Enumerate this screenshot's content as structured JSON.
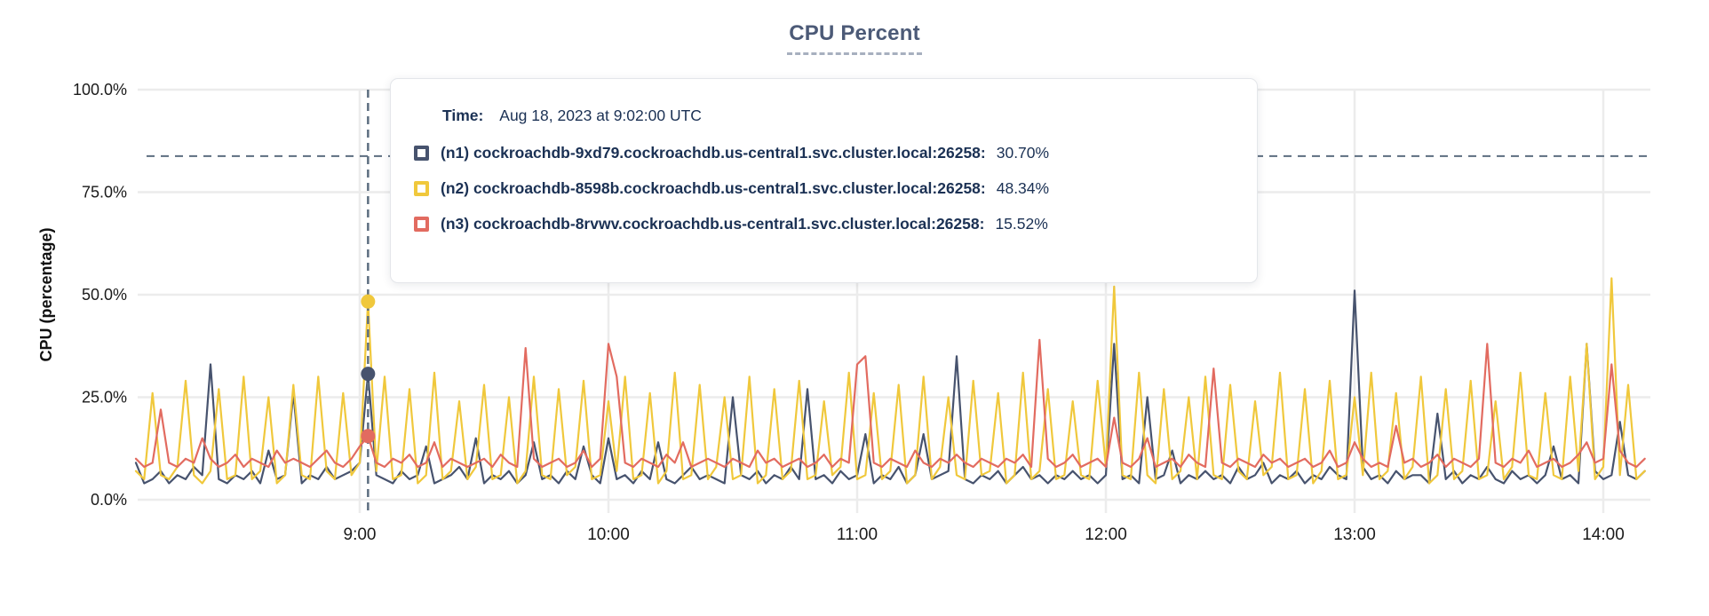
{
  "page": {
    "title": "CPU Percent"
  },
  "tooltip": {
    "time_label": "Time:",
    "time_value": "Aug 18, 2023 at 9:02:00 UTC",
    "series": [
      {
        "label": "(n1) cockroachdb-9xd79.cockroachdb.us-central1.svc.cluster.local:26258:",
        "value": "30.70%",
        "color": "#47536e"
      },
      {
        "label": "(n2) cockroachdb-8598b.cockroachdb.us-central1.svc.cluster.local:26258:",
        "value": "48.34%",
        "color": "#f0c83c"
      },
      {
        "label": "(n3) cockroachdb-8rvwv.cockroachdb.us-central1.svc.cluster.local:26258:",
        "value": "15.52%",
        "color": "#e26b60"
      }
    ]
  },
  "chart_data": {
    "type": "line",
    "title": "CPU Percent",
    "xlabel": "",
    "ylabel": "CPU (percentage)",
    "ylim": [
      0,
      100
    ],
    "grid": true,
    "grid_color": "#ececec",
    "axis_text_color": "#1a1a1a",
    "crosshair_color": "#5d6e80",
    "threshold_pct": 83.8,
    "y_ticks": [
      {
        "v": 0,
        "label": "0.0%"
      },
      {
        "v": 25,
        "label": "25.0%"
      },
      {
        "v": 50,
        "label": "50.0%"
      },
      {
        "v": 75,
        "label": "75.0%"
      },
      {
        "v": 100,
        "label": "100.0%"
      }
    ],
    "x_ticks": [
      {
        "min": 540,
        "label": "9:00"
      },
      {
        "min": 600,
        "label": "10:00"
      },
      {
        "min": 660,
        "label": "11:00"
      },
      {
        "min": 720,
        "label": "12:00"
      },
      {
        "min": 780,
        "label": "13:00"
      },
      {
        "min": 840,
        "label": "14:00"
      }
    ],
    "x_start_min": 486,
    "x_step_min": 2,
    "crosshair": {
      "min": 542,
      "time_label": "Aug 18, 2023 at 9:02:00 UTC"
    },
    "series": [
      {
        "id": "n1",
        "name": "(n1) cockroachdb-9xd79.cockroachdb.us-central1.svc.cluster.local:26258",
        "color": "#47536e",
        "hover_value": 30.7,
        "values": [
          9,
          4,
          5,
          7,
          4,
          6,
          5,
          8,
          6,
          33,
          5,
          4,
          6,
          5,
          7,
          4,
          12,
          5,
          6,
          26,
          4,
          6,
          5,
          8,
          5,
          6,
          7,
          9,
          30.7,
          6,
          5,
          4,
          7,
          5,
          6,
          13,
          4,
          5,
          6,
          8,
          5,
          15,
          4,
          6,
          5,
          7,
          4,
          6,
          14,
          5,
          6,
          4,
          7,
          5,
          13,
          6,
          4,
          15,
          5,
          6,
          4,
          7,
          5,
          14,
          5,
          4,
          6,
          8,
          5,
          6,
          5,
          4,
          25,
          6,
          5,
          7,
          4,
          6,
          5,
          8,
          5,
          27,
          5,
          6,
          4,
          7,
          5,
          6,
          16,
          4,
          6,
          5,
          8,
          4,
          6,
          16,
          5,
          6,
          7,
          35,
          5,
          4,
          6,
          5,
          7,
          4,
          6,
          8,
          5,
          6,
          4,
          6,
          5,
          7,
          5,
          6,
          4,
          6,
          38,
          5,
          6,
          4,
          25,
          5,
          6,
          12,
          4,
          6,
          5,
          7,
          5,
          6,
          4,
          8,
          5,
          6,
          9,
          4,
          6,
          5,
          7,
          4,
          6,
          5,
          8,
          6,
          5,
          51,
          8,
          5,
          6,
          4,
          7,
          5,
          6,
          6,
          4,
          21,
          5,
          7,
          4,
          6,
          5,
          8,
          5,
          4,
          7,
          5,
          6,
          4,
          6,
          13,
          5,
          6,
          4,
          38,
          7,
          5,
          6,
          19,
          6,
          5,
          7
        ]
      },
      {
        "id": "n2",
        "name": "(n2) cockroachdb-8598b.cockroachdb.us-central1.svc.cluster.local:26258",
        "color": "#f0c83c",
        "hover_value": 48.34,
        "values": [
          7,
          5,
          26,
          6,
          5,
          8,
          29,
          6,
          4,
          7,
          27,
          5,
          6,
          30,
          5,
          7,
          25,
          4,
          6,
          28,
          6,
          5,
          30,
          7,
          5,
          26,
          6,
          9,
          48.34,
          7,
          30,
          5,
          6,
          27,
          4,
          6,
          31,
          5,
          7,
          24,
          5,
          8,
          28,
          5,
          6,
          25,
          4,
          7,
          30,
          6,
          5,
          27,
          6,
          8,
          29,
          5,
          6,
          24,
          7,
          30,
          5,
          6,
          26,
          4,
          7,
          31,
          5,
          6,
          28,
          5,
          8,
          25,
          5,
          6,
          30,
          4,
          6,
          27,
          5,
          7,
          29,
          5,
          6,
          24,
          6,
          8,
          31,
          5,
          6,
          26,
          5,
          7,
          28,
          4,
          6,
          30,
          5,
          8,
          25,
          6,
          5,
          29,
          6,
          7,
          26,
          4,
          6,
          31,
          5,
          7,
          27,
          5,
          6,
          24,
          6,
          5,
          29,
          8,
          52,
          6,
          5,
          31,
          6,
          4,
          27,
          5,
          7,
          25,
          5,
          30,
          6,
          5,
          28,
          7,
          5,
          24,
          6,
          8,
          31,
          5,
          6,
          27,
          4,
          7,
          29,
          5,
          6,
          25,
          6,
          31,
          5,
          7,
          26,
          5,
          8,
          30,
          4,
          6,
          27,
          5,
          7,
          29,
          5,
          6,
          24,
          5,
          8,
          31,
          6,
          5,
          26,
          6,
          5,
          30,
          7,
          38,
          5,
          8,
          54,
          6,
          28,
          5,
          7
        ]
      },
      {
        "id": "n3",
        "name": "(n3) cockroachdb-8rvwv.cockroachdb.us-central1.svc.cluster.local:26258",
        "color": "#e26b60",
        "hover_value": 15.52,
        "values": [
          10,
          8,
          9,
          22,
          9,
          8,
          10,
          9,
          15,
          10,
          8,
          9,
          11,
          8,
          10,
          9,
          8,
          12,
          9,
          10,
          9,
          8,
          10,
          12,
          9,
          8,
          10,
          13,
          15.52,
          9,
          8,
          10,
          9,
          11,
          8,
          9,
          14,
          8,
          10,
          9,
          8,
          9,
          10,
          8,
          11,
          9,
          8,
          37,
          10,
          8,
          9,
          10,
          8,
          9,
          12,
          8,
          10,
          38,
          30,
          9,
          8,
          10,
          9,
          8,
          11,
          9,
          14,
          8,
          9,
          10,
          9,
          8,
          10,
          9,
          8,
          12,
          9,
          10,
          8,
          9,
          10,
          8,
          9,
          11,
          8,
          10,
          9,
          33,
          35,
          9,
          8,
          10,
          9,
          8,
          12,
          9,
          8,
          10,
          9,
          11,
          9,
          8,
          10,
          9,
          8,
          10,
          9,
          11,
          8,
          39,
          10,
          8,
          9,
          11,
          8,
          9,
          10,
          8,
          20,
          9,
          8,
          10,
          15,
          8,
          9,
          10,
          8,
          11,
          9,
          8,
          32,
          9,
          8,
          10,
          9,
          8,
          11,
          9,
          10,
          8,
          9,
          10,
          8,
          9,
          12,
          8,
          9,
          14,
          10,
          8,
          9,
          8,
          18,
          9,
          10,
          8,
          9,
          11,
          8,
          10,
          9,
          8,
          10,
          38,
          9,
          8,
          10,
          9,
          12,
          8,
          9,
          10,
          8,
          9,
          11,
          14,
          9,
          10,
          33,
          12,
          9,
          8,
          10
        ]
      }
    ]
  }
}
